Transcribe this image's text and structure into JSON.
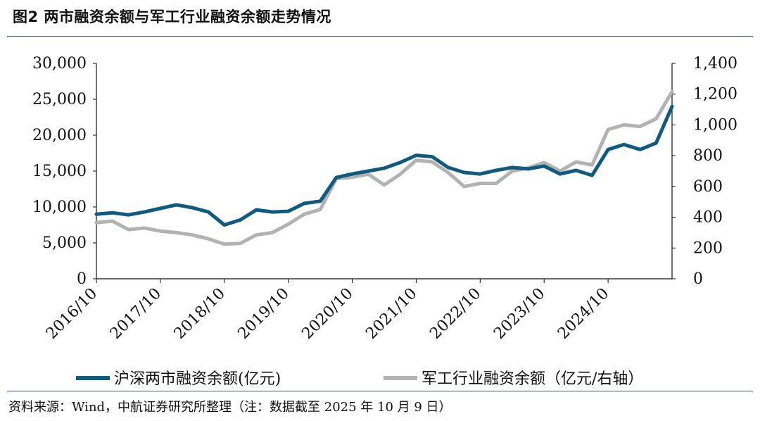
{
  "figure": {
    "title": "图2  两市融资余额与军工行业融资余额走势情况",
    "source": "资料来源：Wind，中航证券研究所整理（注：数据截至 2025 年 10 月 9 日）"
  },
  "chart_data": {
    "type": "line",
    "title": "",
    "xlabel": "",
    "ylabel": "",
    "x_ticks": [
      "2016/10",
      "2017/10",
      "2018/10",
      "2019/10",
      "2020/10",
      "2021/10",
      "2022/10",
      "2023/10",
      "2024/10"
    ],
    "x": [
      "2016/10",
      "2017/01",
      "2017/04",
      "2017/07",
      "2017/10",
      "2018/01",
      "2018/04",
      "2018/07",
      "2018/10",
      "2019/01",
      "2019/04",
      "2019/07",
      "2019/10",
      "2020/01",
      "2020/04",
      "2020/07",
      "2020/10",
      "2021/01",
      "2021/04",
      "2021/07",
      "2021/10",
      "2022/01",
      "2022/04",
      "2022/07",
      "2022/10",
      "2023/01",
      "2023/04",
      "2023/07",
      "2023/10",
      "2024/01",
      "2024/04",
      "2024/07",
      "2024/10",
      "2025/01",
      "2025/04",
      "2025/07",
      "2025/10"
    ],
    "left_axis": {
      "ylim": [
        0,
        30000
      ],
      "ticks": [
        "0",
        "5,000",
        "10,000",
        "15,000",
        "20,000",
        "25,000",
        "30,000"
      ]
    },
    "right_axis": {
      "ylim": [
        0,
        1400
      ],
      "ticks": [
        "0",
        "200",
        "400",
        "600",
        "800",
        "1,000",
        "1,200",
        "1,400"
      ]
    },
    "grid": false,
    "legend_position": "bottom",
    "series": [
      {
        "name": "沪深两市融资余额(亿元)",
        "axis": "left",
        "color": "#0e5a80",
        "values": [
          9000,
          9200,
          8900,
          9300,
          9800,
          10300,
          9900,
          9300,
          7500,
          8200,
          9600,
          9300,
          9400,
          10500,
          10800,
          14100,
          14600,
          15000,
          15400,
          16200,
          17200,
          17000,
          15500,
          14800,
          14600,
          15100,
          15500,
          15300,
          15700,
          14600,
          15100,
          14400,
          18000,
          18700,
          18000,
          18900,
          24000
        ]
      },
      {
        "name": "军工行业融资余额（亿元/右轴）",
        "axis": "right",
        "color": "#b2b2b2",
        "values": [
          365,
          375,
          320,
          330,
          310,
          300,
          285,
          260,
          225,
          230,
          285,
          300,
          355,
          420,
          450,
          650,
          660,
          680,
          610,
          680,
          770,
          760,
          690,
          600,
          620,
          620,
          700,
          720,
          755,
          700,
          760,
          740,
          970,
          1000,
          990,
          1040,
          1215
        ]
      }
    ]
  }
}
